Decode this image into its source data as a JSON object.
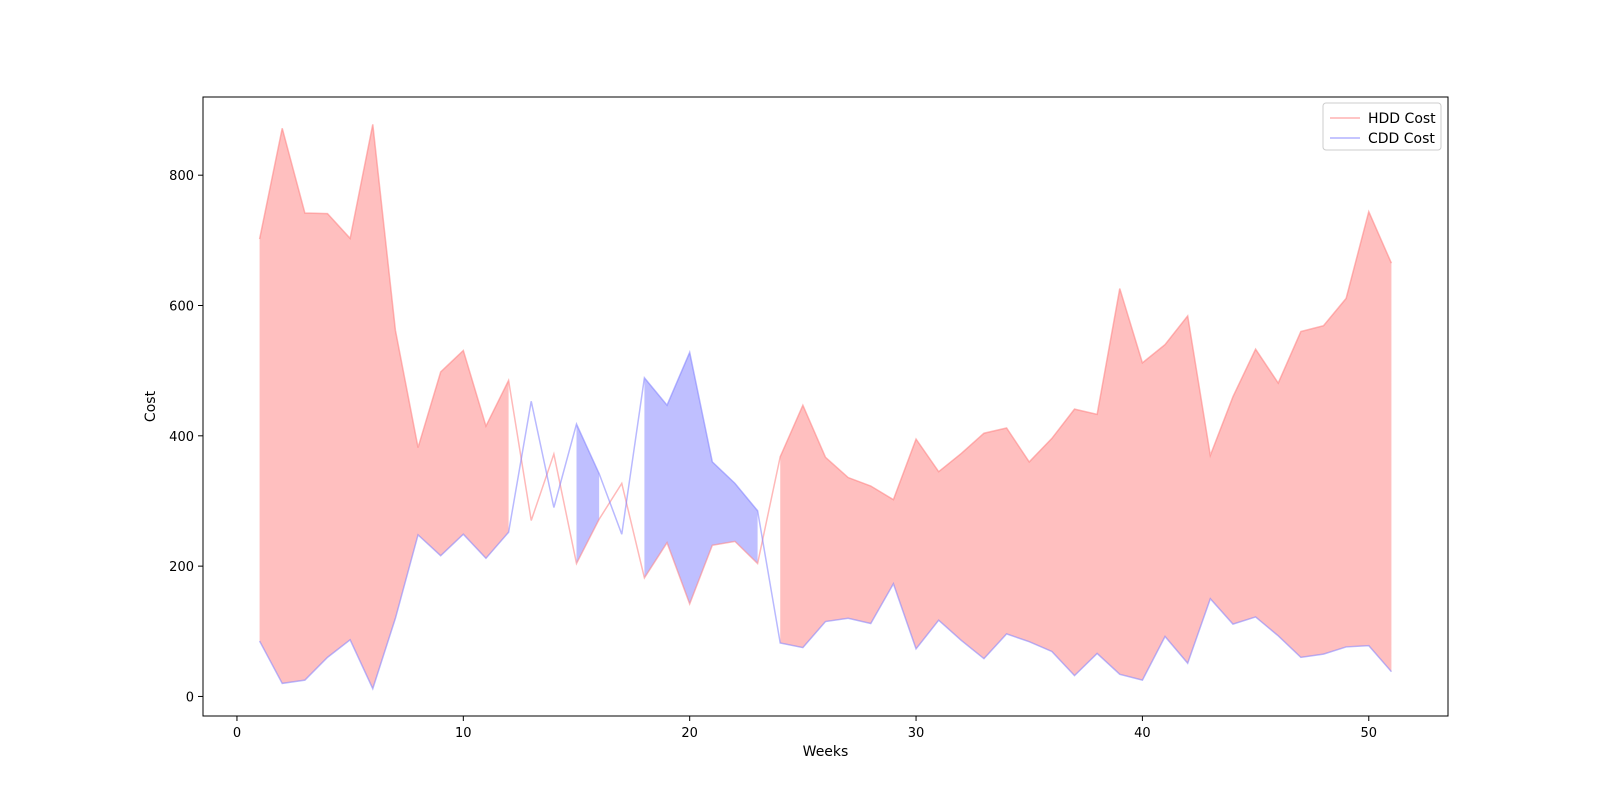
{
  "chart_data": {
    "type": "area",
    "title": "",
    "xlabel": "Weeks",
    "ylabel": "Cost",
    "xlim": [
      -1.5,
      53.5
    ],
    "ylim": [
      -30,
      920
    ],
    "x_ticks": [
      0,
      10,
      20,
      30,
      40,
      50
    ],
    "y_ticks": [
      0,
      200,
      400,
      600,
      800
    ],
    "grid": false,
    "legend_position": "top-right",
    "fill_between": "shaded region between the two series, colored by whichever series is higher",
    "x": [
      1,
      2,
      3,
      4,
      5,
      6,
      7,
      8,
      9,
      10,
      11,
      12,
      13,
      14,
      15,
      16,
      17,
      18,
      19,
      20,
      21,
      22,
      23,
      24,
      25,
      26,
      27,
      28,
      29,
      30,
      31,
      32,
      33,
      34,
      35,
      36,
      37,
      38,
      39,
      40,
      41,
      42,
      43,
      44,
      45,
      46,
      47,
      48,
      49,
      50,
      51
    ],
    "series": [
      {
        "name": "HDD Cost",
        "color": "#ff7f7f",
        "values": [
          702,
          872,
          742,
          741,
          703,
          878,
          562,
          382,
          498,
          531,
          415,
          485,
          270,
          372,
          204,
          272,
          327,
          182,
          236,
          142,
          232,
          238,
          204,
          368,
          447,
          367,
          336,
          323,
          302,
          395,
          345,
          373,
          404,
          412,
          360,
          396,
          441,
          433,
          626,
          512,
          540,
          584,
          370,
          460,
          533,
          481,
          560,
          569,
          611,
          744,
          665
        ]
      },
      {
        "name": "CDD Cost",
        "color": "#7f7fff",
        "values": [
          85,
          20,
          25,
          60,
          87,
          12,
          120,
          248,
          216,
          249,
          212,
          252,
          453,
          290,
          418,
          342,
          249,
          489,
          447,
          528,
          360,
          327,
          285,
          82,
          75,
          115,
          120,
          112,
          173,
          73,
          117,
          86,
          58,
          96,
          84,
          69,
          32,
          66,
          34,
          25,
          92,
          51,
          150,
          111,
          122,
          93,
          60,
          65,
          76,
          78,
          38
        ]
      }
    ]
  }
}
